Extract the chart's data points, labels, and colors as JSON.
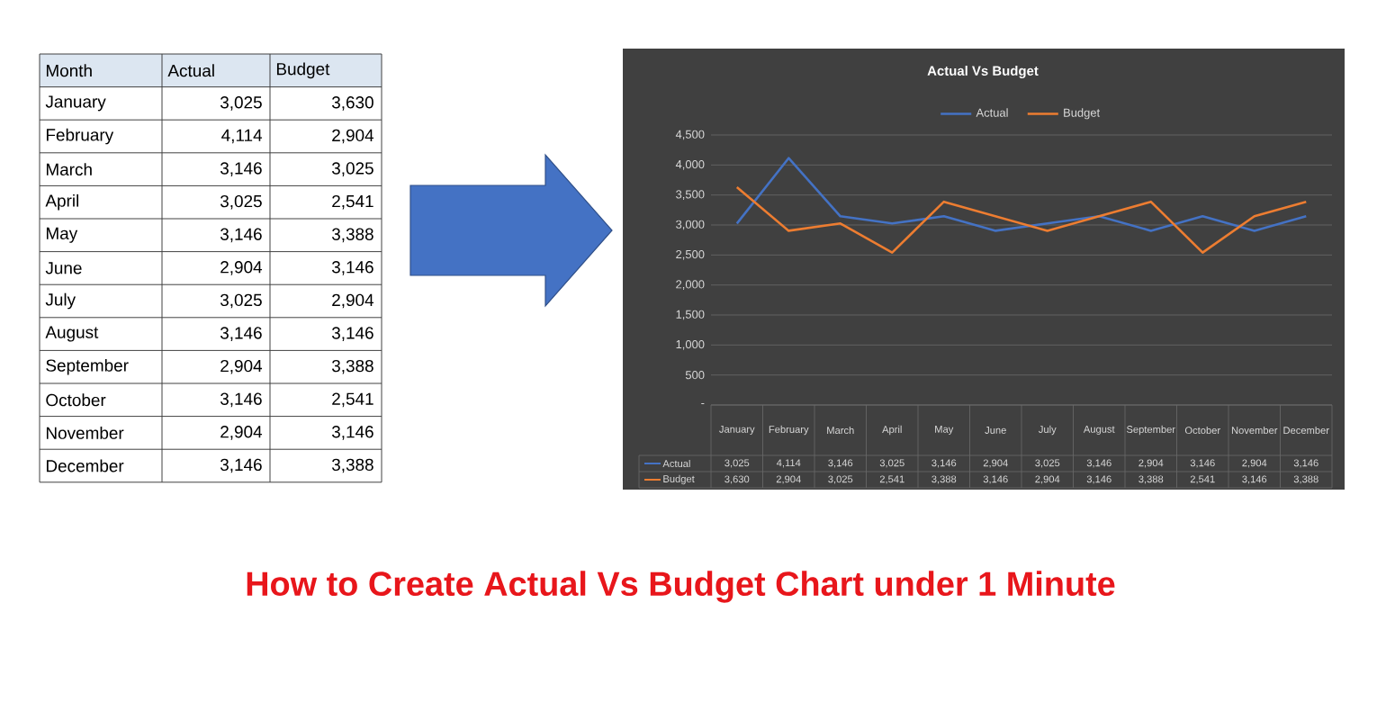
{
  "chart_data": {
    "type": "line",
    "title": "Actual Vs Budget",
    "categories": [
      "January",
      "February",
      "March",
      "April",
      "May",
      "June",
      "July",
      "August",
      "September",
      "October",
      "November",
      "December"
    ],
    "series": [
      {
        "name": "Actual",
        "color": "#4472c4",
        "values": [
          3025,
          4114,
          3146,
          3025,
          3146,
          2904,
          3025,
          3146,
          2904,
          3146,
          2904,
          3146
        ],
        "value_labels": [
          "3,025",
          "4,114",
          "3,146",
          "3,025",
          "3,146",
          "2,904",
          "3,025",
          "3,146",
          "2,904",
          "3,146",
          "2,904",
          "3,146"
        ]
      },
      {
        "name": "Budget",
        "color": "#ed7d31",
        "values": [
          3630,
          2904,
          3025,
          2541,
          3388,
          3146,
          2904,
          3146,
          3388,
          2541,
          3146,
          3388
        ],
        "value_labels": [
          "3,630",
          "2,904",
          "3,025",
          "2,541",
          "3,388",
          "3,146",
          "2,904",
          "3,146",
          "3,388",
          "2,541",
          "3,146",
          "3,388"
        ]
      }
    ],
    "ylim": [
      0,
      4500
    ],
    "yticks": [
      {
        "value": 0,
        "label": "-"
      },
      {
        "value": 500,
        "label": "500"
      },
      {
        "value": 1000,
        "label": "1,000"
      },
      {
        "value": 1500,
        "label": "1,500"
      },
      {
        "value": 2000,
        "label": "2,000"
      },
      {
        "value": 2500,
        "label": "2,500"
      },
      {
        "value": 3000,
        "label": "3,000"
      },
      {
        "value": 3500,
        "label": "3,500"
      },
      {
        "value": 4000,
        "label": "4,000"
      },
      {
        "value": 4500,
        "label": "4,500"
      }
    ],
    "grid": "y",
    "legend": "top",
    "marker": "none",
    "line_style": "solid",
    "annotations": [
      "Month",
      "How to Create Actual Vs Budget Chart under 1 Minute"
    ]
  }
}
